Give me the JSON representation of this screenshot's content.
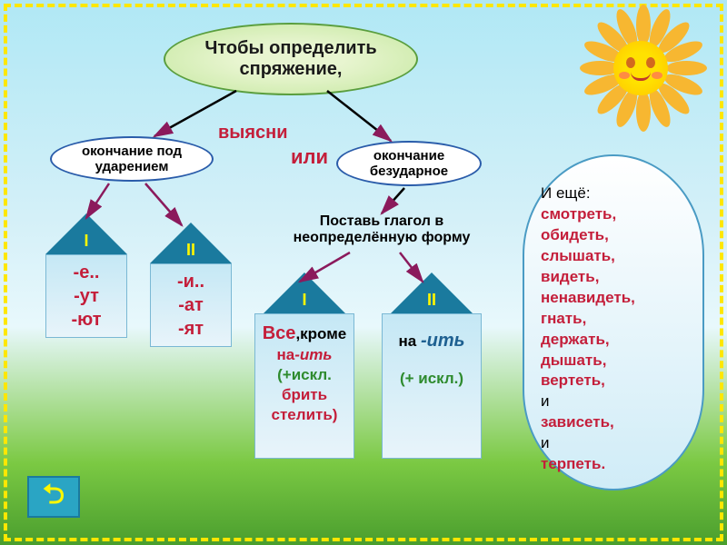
{
  "colors": {
    "sky_top": "#b0e8f5",
    "sky_bottom": "#e8f8fc",
    "grass_top": "#7bc943",
    "grass_bottom": "#4a9e2e",
    "frame": "#ffe700",
    "sun_core": "#ffe100",
    "sun_ray": "#f7b731",
    "bubble_fill": "#c5e8a0",
    "bubble_border": "#5a9e3e",
    "oval_border": "#2a5caa",
    "red": "#c41e3a",
    "green": "#2e8b2e",
    "blue": "#1e6091",
    "roof": "#1a7a9e",
    "roof_label": "#fff700",
    "house_fill": "#c5e8f5",
    "arrow": "#8b1a5c",
    "side_border": "#4a9bc4",
    "back_btn": "#2aa5c4"
  },
  "title": "Чтобы определить спряжение,",
  "center": {
    "line1": "выясни",
    "line2": "или"
  },
  "oval_left": "окончание под ударением",
  "oval_right": "окончание безударное",
  "instruction": "Поставь глагол в неопределённую форму",
  "houses": {
    "h1": {
      "roof": "I",
      "lines": [
        "-е..",
        "-ут",
        "-ют"
      ]
    },
    "h2": {
      "roof": "II",
      "lines": [
        "-и..",
        "-ат",
        "-ят"
      ]
    },
    "h3": {
      "roof": "I",
      "l1a": "Все",
      "l1b": ",кроме",
      "l2a": "на",
      "l2b": "-ить",
      "l3": "(+искл.",
      "l4": "брить",
      "l5": "стелить)"
    },
    "h4": {
      "roof": "II",
      "l1a": "на ",
      "l1b": "-ить",
      "l2": "(+ искл.)"
    }
  },
  "side": {
    "intro": "И ещё:",
    "words": [
      "смотреть,",
      "обидеть,",
      "слышать,",
      "видеть,",
      "ненавидеть,",
      "гнать,",
      "держать,",
      "дышать,",
      "вертеть,"
    ],
    "and1": "и",
    "w_after1": "зависеть,",
    "and2": "и",
    "w_after2": "терпеть."
  },
  "back_label": "↩"
}
